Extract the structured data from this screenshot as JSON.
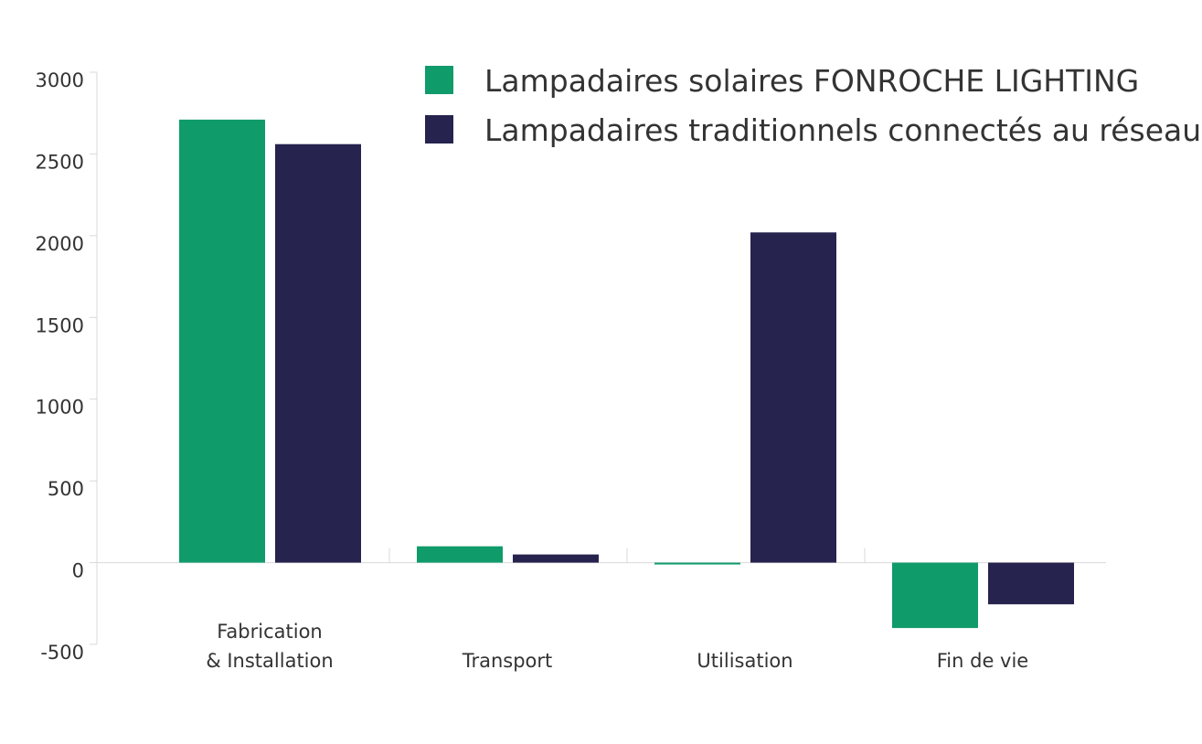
{
  "chart_data": {
    "type": "bar",
    "title": "",
    "xlabel": "",
    "ylabel": "",
    "categories": [
      [
        "Fabrication",
        "& Installation"
      ],
      [
        "Transport"
      ],
      [
        "Utilisation"
      ],
      [
        "Fin de vie"
      ]
    ],
    "series": [
      {
        "name": "Lampadaires solaires FONROCHE LIGHTING",
        "color": "#109b6b",
        "values": [
          2710,
          100,
          -10,
          -400
        ]
      },
      {
        "name": "Lampadaires traditionnels connectés au réseau",
        "color": "#26234f",
        "values": [
          2560,
          50,
          2020,
          -255
        ]
      }
    ],
    "ylim": [
      -500,
      3000
    ],
    "yticks": [
      {
        "value": -500,
        "label": "-500"
      },
      {
        "value": 0,
        "label": "0"
      },
      {
        "value": 500,
        "label": "500"
      },
      {
        "value": 1000,
        "label": "1000"
      },
      {
        "value": 1500,
        "label": "1500"
      },
      {
        "value": 2000,
        "label": "2000"
      },
      {
        "value": 2500,
        "label": "2500"
      },
      {
        "value": 3000,
        "label": "3000"
      }
    ],
    "legend_position": "top-right",
    "grid": false
  }
}
